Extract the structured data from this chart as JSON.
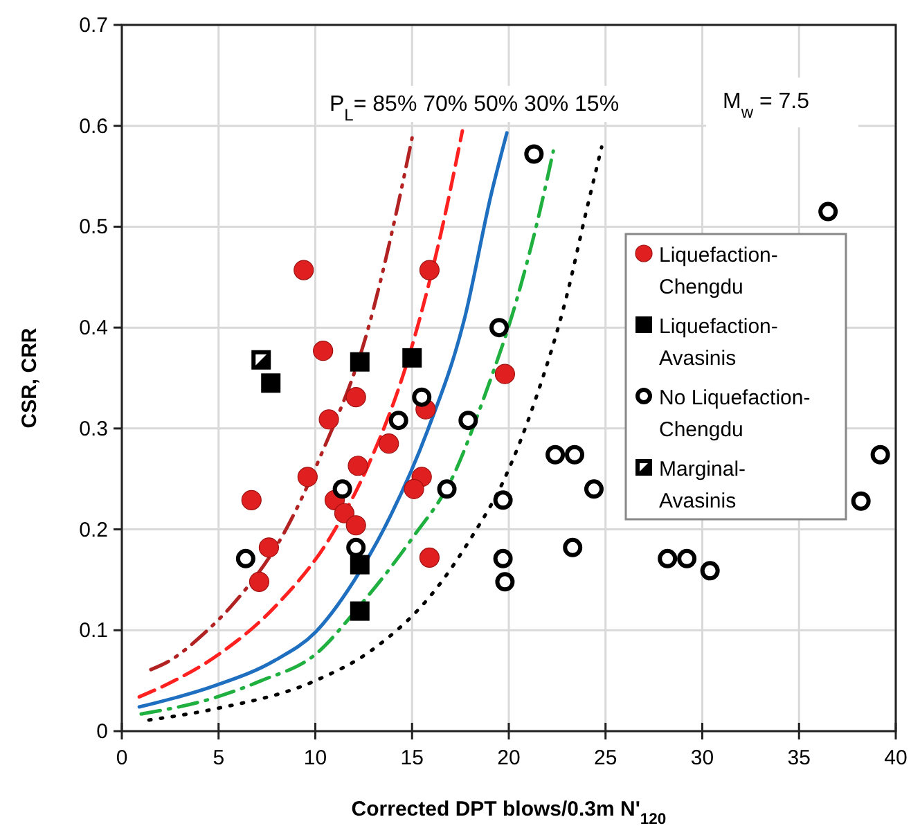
{
  "chart_data": {
    "type": "scatter",
    "xlabel": "Corrected DPT blows/0.3m N'$_{120}$",
    "ylabel": "CSR, CRR",
    "xlim": [
      0,
      40
    ],
    "ylim": [
      0,
      0.7
    ],
    "xticks": [
      0,
      5,
      10,
      15,
      20,
      25,
      30,
      35,
      40
    ],
    "yticks": [
      0,
      0.1,
      0.2,
      0.3,
      0.4,
      0.5,
      0.6,
      0.7
    ],
    "grid": true,
    "legend": "right",
    "annotations": [
      "P$_{L}$= 85% 70% 50% 30% 15%",
      "M$_{w}$ = 7.5"
    ],
    "series": [
      {
        "name": "Liquefaction-Chengdu",
        "color": "#e02020",
        "marker": "circle",
        "x": [
          9.4,
          15.9,
          10.4,
          12.1,
          10.7,
          15.7,
          13.8,
          12.2,
          9.6,
          15.5,
          15.1,
          6.7,
          11.0,
          11.5,
          12.1,
          7.6,
          7.1,
          15.9,
          19.8
        ],
        "values": [
          0.457,
          0.457,
          0.377,
          0.331,
          0.309,
          0.319,
          0.285,
          0.263,
          0.252,
          0.252,
          0.24,
          0.229,
          0.229,
          0.216,
          0.204,
          0.182,
          0.148,
          0.172,
          0.354
        ]
      },
      {
        "name": "Liquefaction-Avasinis",
        "color": "#000000",
        "marker": "square",
        "x": [
          7.7,
          12.3,
          15.0,
          12.3,
          12.3
        ],
        "values": [
          0.345,
          0.366,
          0.37,
          0.165,
          0.119
        ]
      },
      {
        "name": "No Liquefaction-Chengdu",
        "color": "#000000",
        "marker": "circle",
        "x": [
          6.4,
          11.4,
          12.1,
          14.3,
          15.5,
          17.9,
          16.8,
          19.5,
          19.7,
          19.7,
          19.8,
          21.3,
          36.5,
          39.2,
          38.2,
          22.4,
          23.4,
          24.4,
          23.3,
          28.2,
          29.2,
          30.4
        ],
        "values": [
          0.171,
          0.24,
          0.182,
          0.308,
          0.331,
          0.308,
          0.24,
          0.4,
          0.229,
          0.171,
          0.148,
          0.572,
          0.515,
          0.274,
          0.228,
          0.274,
          0.274,
          0.24,
          0.182,
          0.171,
          0.171,
          0.159
        ]
      },
      {
        "name": "Marginal-Avasinis",
        "color": "#000000",
        "marker": "square",
        "x": [
          7.2
        ],
        "values": [
          0.368
        ]
      },
      {
        "type": "line",
        "color": "#b22222",
        "line_style": "dashdotdot",
        "x": [
          1.5,
          2.4,
          4.2,
          5.8,
          8.4,
          10.3,
          12.7,
          14.3,
          15.0
        ],
        "values": [
          0.061,
          0.069,
          0.096,
          0.127,
          0.197,
          0.274,
          0.397,
          0.524,
          0.588
        ]
      },
      {
        "type": "line",
        "color": "#ff2020",
        "line_style": "dashed",
        "x": [
          0.9,
          2.4,
          5.0,
          7.9,
          10.8,
          12.7,
          14.8,
          16.5,
          17.6
        ],
        "values": [
          0.034,
          0.047,
          0.076,
          0.123,
          0.193,
          0.262,
          0.369,
          0.494,
          0.595
        ]
      },
      {
        "type": "line",
        "color": "#1f6fc0",
        "line_style": "solid",
        "x": [
          0.9,
          4.8,
          7.9,
          10.0,
          12.0,
          13.9,
          15.8,
          17.7,
          19.1,
          19.9
        ],
        "values": [
          0.024,
          0.045,
          0.07,
          0.098,
          0.149,
          0.214,
          0.298,
          0.408,
          0.533,
          0.593
        ]
      },
      {
        "type": "line",
        "color": "#20b040",
        "line_style": "dashdot",
        "x": [
          1.0,
          4.6,
          7.2,
          10.0,
          12.2,
          15.0,
          17.1,
          18.8,
          20.4,
          21.6,
          22.3
        ],
        "values": [
          0.017,
          0.032,
          0.05,
          0.076,
          0.122,
          0.191,
          0.252,
          0.335,
          0.427,
          0.515,
          0.575
        ]
      },
      {
        "type": "line",
        "color": "#000000",
        "line_style": "dotted",
        "x": [
          1.4,
          4.8,
          10.0,
          12.9,
          16.2,
          18.1,
          19.7,
          21.4,
          23.0,
          24.0,
          24.8
        ],
        "values": [
          0.011,
          0.022,
          0.05,
          0.08,
          0.14,
          0.193,
          0.247,
          0.33,
          0.432,
          0.515,
          0.579
        ]
      }
    ]
  }
}
